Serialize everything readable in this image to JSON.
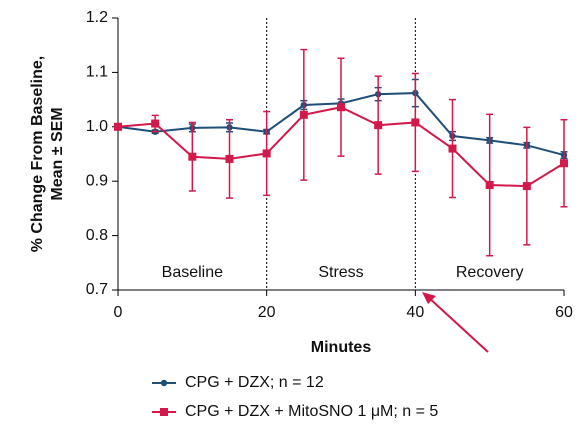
{
  "chart_data": {
    "type": "line",
    "y_label_lines": [
      "% Change From Baseline,",
      "Mean ± SEM"
    ],
    "x_label": "Minutes",
    "x": [
      0,
      5,
      10,
      15,
      20,
      25,
      30,
      35,
      40,
      45,
      50,
      55,
      60
    ],
    "series": [
      {
        "name": "CPG + DZX; n = 12",
        "color": "#1f4e79",
        "marker": "circle",
        "values": [
          1.0,
          0.991,
          0.998,
          0.999,
          0.991,
          1.04,
          1.043,
          1.06,
          1.062,
          0.983,
          0.975,
          0.966,
          0.948
        ],
        "errors": [
          0,
          0.003,
          0.007,
          0.008,
          0.004,
          0.008,
          0.008,
          0.012,
          0.025,
          0.008,
          0.005,
          0.005,
          0.006
        ]
      },
      {
        "name": "CPG + DZX + MitoSNO 1 μM; n = 5",
        "color": "#d2194a",
        "marker": "square",
        "values": [
          1.0,
          1.006,
          0.945,
          0.941,
          0.951,
          1.022,
          1.036,
          1.003,
          1.008,
          0.96,
          0.893,
          0.891,
          0.933
        ],
        "errors": [
          0,
          0.015,
          0.063,
          0.072,
          0.077,
          0.12,
          0.09,
          0.09,
          0.09,
          0.09,
          0.13,
          0.108,
          0.08
        ]
      }
    ],
    "xlim": [
      0,
      60
    ],
    "xticks": [
      0,
      20,
      40,
      60
    ],
    "ylim": [
      0.7,
      1.2
    ],
    "yticks": [
      {
        "value": 0.7,
        "label": "0.7"
      },
      {
        "value": 0.8,
        "label": "0.8"
      },
      {
        "value": 0.9,
        "label": "0.9"
      },
      {
        "value": 1.0,
        "label": "1.0"
      },
      {
        "value": 1.1,
        "label": "1.1"
      },
      {
        "value": 1.2,
        "label": "1.2"
      }
    ],
    "vlines": [
      20,
      40
    ],
    "regions": [
      {
        "label": "Baseline",
        "start": 0,
        "end": 20
      },
      {
        "label": "Stress",
        "start": 20,
        "end": 40
      },
      {
        "label": "Recovery",
        "start": 40,
        "end": 60
      }
    ]
  }
}
